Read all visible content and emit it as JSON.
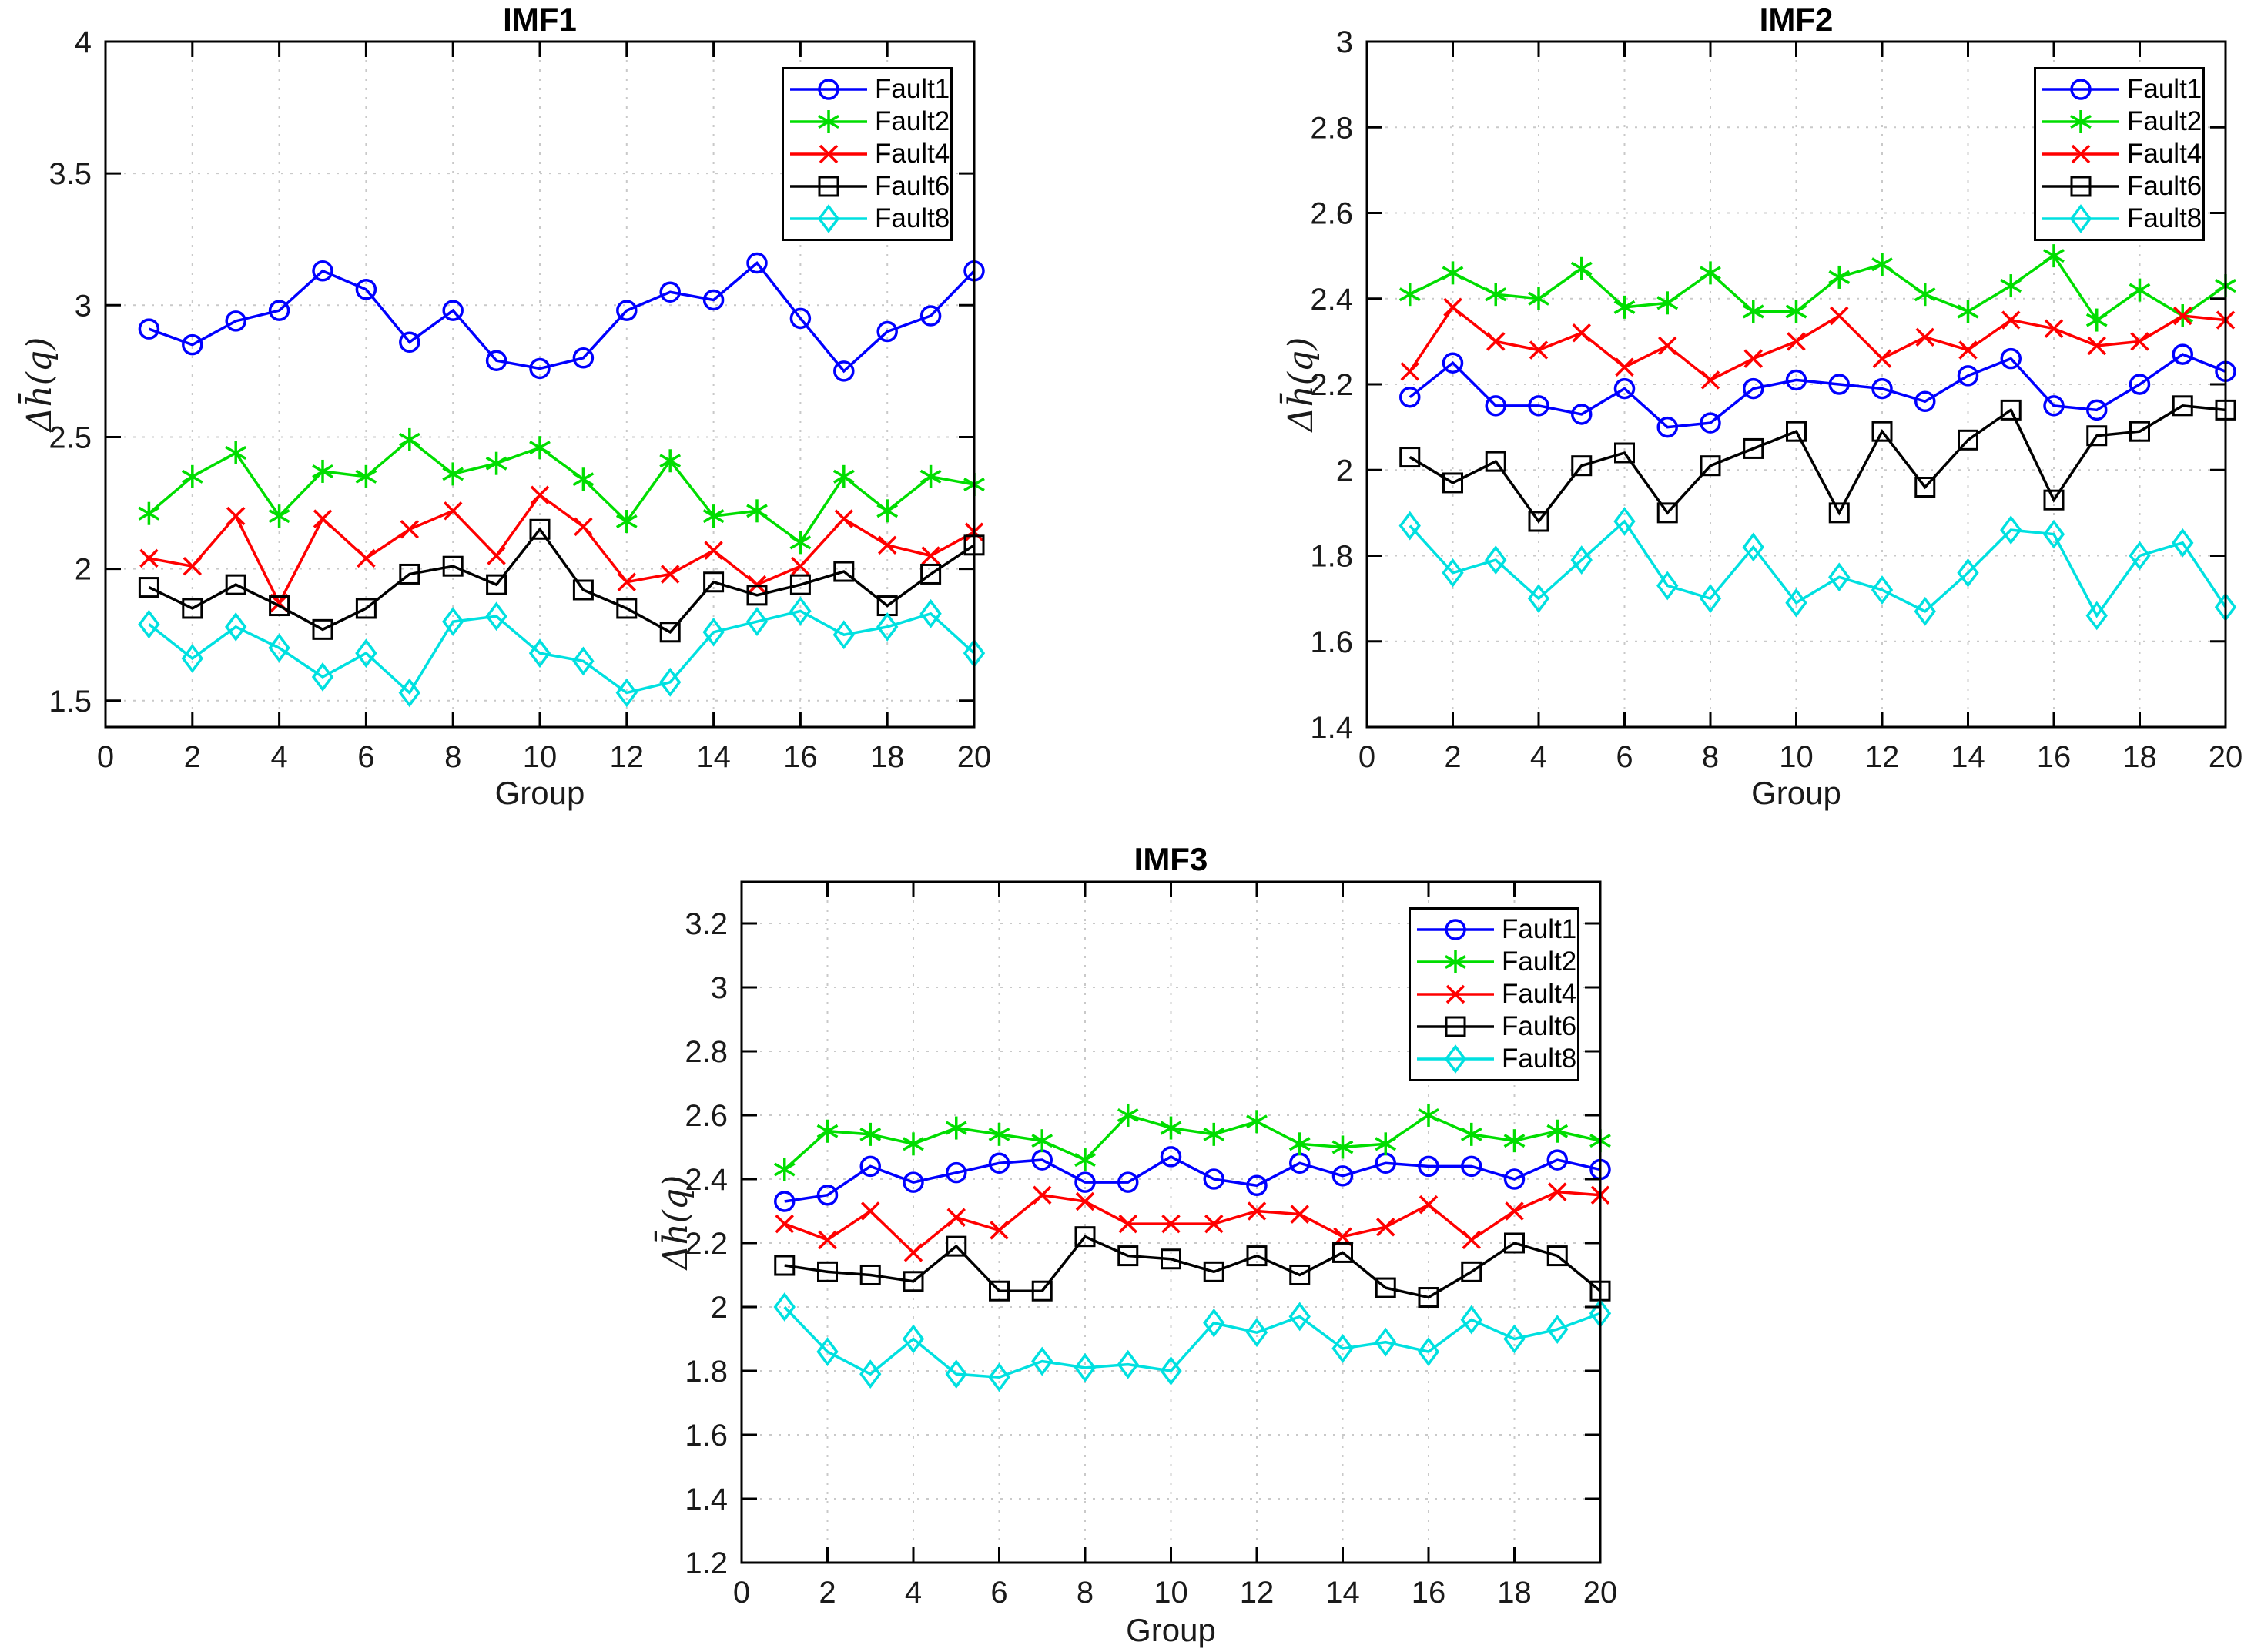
{
  "page": {
    "background": "#ffffff",
    "accent_colors": {
      "fault1": "#0000ff",
      "fault2": "#00dd00",
      "fault4": "#ff0000",
      "fault6": "#000000",
      "fault8": "#00e0e0",
      "grid": "#c9c9c9",
      "axes": "#000000"
    }
  },
  "chart_data": [
    {
      "type": "line",
      "title": "IMF1",
      "xlabel": "Group",
      "ylabel": "Δh̄(q)",
      "grid": true,
      "legend_position": "top-right-inside",
      "legend_entries": [
        "Fault1",
        "Fault2",
        "Fault4",
        "Fault6",
        "Fault8"
      ],
      "xlim": [
        0,
        20
      ],
      "ylim": [
        1.4,
        4.0
      ],
      "xticks": [
        0,
        2,
        4,
        6,
        8,
        10,
        12,
        14,
        16,
        18,
        20
      ],
      "xtick_labels": [
        "0",
        "2",
        "4",
        "6",
        "8",
        "10",
        "12",
        "14",
        "16",
        "18",
        "20"
      ],
      "yticks": [
        1.5,
        2,
        2.5,
        3,
        3.5,
        4
      ],
      "ytick_labels": [
        "1.5",
        "2",
        "2.5",
        "3",
        "3.5",
        "4"
      ],
      "x": [
        1,
        2,
        3,
        4,
        5,
        6,
        7,
        8,
        9,
        10,
        11,
        12,
        13,
        14,
        15,
        16,
        17,
        18,
        19,
        20
      ],
      "series": [
        {
          "name": "Fault1",
          "color": "#0000ff",
          "marker": "circle",
          "values": [
            2.91,
            2.85,
            2.94,
            2.98,
            3.13,
            3.06,
            2.86,
            2.98,
            2.79,
            2.76,
            2.8,
            2.98,
            3.05,
            3.02,
            3.16,
            2.95,
            2.75,
            2.9,
            2.96,
            3.13
          ]
        },
        {
          "name": "Fault2",
          "color": "#00dd00",
          "marker": "asterisk",
          "values": [
            2.21,
            2.35,
            2.44,
            2.2,
            2.37,
            2.35,
            2.49,
            2.36,
            2.4,
            2.46,
            2.34,
            2.18,
            2.41,
            2.2,
            2.22,
            2.1,
            2.35,
            2.22,
            2.35,
            2.32
          ]
        },
        {
          "name": "Fault4",
          "color": "#ff0000",
          "marker": "x",
          "values": [
            2.04,
            2.01,
            2.2,
            1.87,
            2.19,
            2.04,
            2.15,
            2.22,
            2.05,
            2.28,
            2.16,
            1.95,
            1.98,
            2.07,
            1.94,
            2.01,
            2.19,
            2.09,
            2.05,
            2.14
          ]
        },
        {
          "name": "Fault6",
          "color": "#000000",
          "marker": "square",
          "values": [
            1.93,
            1.85,
            1.94,
            1.86,
            1.77,
            1.85,
            1.98,
            2.01,
            1.94,
            2.15,
            1.92,
            1.85,
            1.76,
            1.95,
            1.9,
            1.94,
            1.99,
            1.86,
            1.98,
            2.09
          ]
        },
        {
          "name": "Fault8",
          "color": "#00e0e0",
          "marker": "diamond",
          "values": [
            1.79,
            1.66,
            1.78,
            1.7,
            1.59,
            1.68,
            1.53,
            1.8,
            1.82,
            1.68,
            1.65,
            1.53,
            1.57,
            1.76,
            1.8,
            1.84,
            1.75,
            1.78,
            1.83,
            1.68
          ]
        }
      ]
    },
    {
      "type": "line",
      "title": "IMF2",
      "xlabel": "Group",
      "ylabel": "Δh̄(q)",
      "grid": true,
      "legend_position": "top-right-inside",
      "legend_entries": [
        "Fault1",
        "Fault2",
        "Fault4",
        "Fault6",
        "Fault8"
      ],
      "xlim": [
        0,
        20
      ],
      "ylim": [
        1.4,
        3.0
      ],
      "xticks": [
        0,
        2,
        4,
        6,
        8,
        10,
        12,
        14,
        16,
        18,
        20
      ],
      "xtick_labels": [
        "0",
        "2",
        "4",
        "6",
        "8",
        "10",
        "12",
        "14",
        "16",
        "18",
        "20"
      ],
      "yticks": [
        1.4,
        1.6,
        1.8,
        2,
        2.2,
        2.4,
        2.6,
        2.8,
        3
      ],
      "ytick_labels": [
        "1.4",
        "1.6",
        "1.8",
        "2",
        "2.2",
        "2.4",
        "2.6",
        "2.8",
        "3"
      ],
      "x": [
        1,
        2,
        3,
        4,
        5,
        6,
        7,
        8,
        9,
        10,
        11,
        12,
        13,
        14,
        15,
        16,
        17,
        18,
        19,
        20
      ],
      "series": [
        {
          "name": "Fault1",
          "color": "#0000ff",
          "marker": "circle",
          "values": [
            2.17,
            2.25,
            2.15,
            2.15,
            2.13,
            2.19,
            2.1,
            2.11,
            2.19,
            2.21,
            2.2,
            2.19,
            2.16,
            2.22,
            2.26,
            2.15,
            2.14,
            2.2,
            2.27,
            2.23
          ]
        },
        {
          "name": "Fault2",
          "color": "#00dd00",
          "marker": "asterisk",
          "values": [
            2.41,
            2.46,
            2.41,
            2.4,
            2.47,
            2.38,
            2.39,
            2.46,
            2.37,
            2.37,
            2.45,
            2.48,
            2.41,
            2.37,
            2.43,
            2.5,
            2.35,
            2.42,
            2.36,
            2.43
          ]
        },
        {
          "name": "Fault4",
          "color": "#ff0000",
          "marker": "x",
          "values": [
            2.23,
            2.38,
            2.3,
            2.28,
            2.32,
            2.24,
            2.29,
            2.21,
            2.26,
            2.3,
            2.36,
            2.26,
            2.31,
            2.28,
            2.35,
            2.33,
            2.29,
            2.3,
            2.36,
            2.35
          ]
        },
        {
          "name": "Fault6",
          "color": "#000000",
          "marker": "square",
          "values": [
            2.03,
            1.97,
            2.02,
            1.88,
            2.01,
            2.04,
            1.9,
            2.01,
            2.05,
            2.09,
            1.9,
            2.09,
            1.96,
            2.07,
            2.14,
            1.93,
            2.08,
            2.09,
            2.15,
            2.14
          ]
        },
        {
          "name": "Fault8",
          "color": "#00e0e0",
          "marker": "diamond",
          "values": [
            1.87,
            1.76,
            1.79,
            1.7,
            1.79,
            1.88,
            1.73,
            1.7,
            1.82,
            1.69,
            1.75,
            1.72,
            1.67,
            1.76,
            1.86,
            1.85,
            1.66,
            1.8,
            1.83,
            1.68
          ]
        }
      ]
    },
    {
      "type": "line",
      "title": "IMF3",
      "xlabel": "Group",
      "ylabel": "Δh̄(q)",
      "grid": true,
      "legend_position": "top-right-inside",
      "legend_entries": [
        "Fault1",
        "Fault2",
        "Fault4",
        "Fault6",
        "Fault8"
      ],
      "xlim": [
        0,
        20
      ],
      "ylim": [
        1.2,
        3.33
      ],
      "xticks": [
        0,
        2,
        4,
        6,
        8,
        10,
        12,
        14,
        16,
        18,
        20
      ],
      "xtick_labels": [
        "0",
        "2",
        "4",
        "6",
        "8",
        "10",
        "12",
        "14",
        "16",
        "18",
        "20"
      ],
      "yticks": [
        1.2,
        1.4,
        1.6,
        1.8,
        2,
        2.2,
        2.4,
        2.6,
        2.8,
        3,
        3.2
      ],
      "ytick_labels": [
        "1.2",
        "1.4",
        "1.6",
        "1.8",
        "2",
        "2.2",
        "2.4",
        "2.6",
        "2.8",
        "3",
        "3.2"
      ],
      "x": [
        1,
        2,
        3,
        4,
        5,
        6,
        7,
        8,
        9,
        10,
        11,
        12,
        13,
        14,
        15,
        16,
        17,
        18,
        19,
        20
      ],
      "series": [
        {
          "name": "Fault1",
          "color": "#0000ff",
          "marker": "circle",
          "values": [
            2.33,
            2.35,
            2.44,
            2.39,
            2.42,
            2.45,
            2.46,
            2.39,
            2.39,
            2.47,
            2.4,
            2.38,
            2.45,
            2.41,
            2.45,
            2.44,
            2.44,
            2.4,
            2.46,
            2.43
          ]
        },
        {
          "name": "Fault2",
          "color": "#00dd00",
          "marker": "asterisk",
          "values": [
            2.43,
            2.55,
            2.54,
            2.51,
            2.56,
            2.54,
            2.52,
            2.46,
            2.6,
            2.56,
            2.54,
            2.58,
            2.51,
            2.5,
            2.51,
            2.6,
            2.54,
            2.52,
            2.55,
            2.52
          ]
        },
        {
          "name": "Fault4",
          "color": "#ff0000",
          "marker": "x",
          "values": [
            2.26,
            2.21,
            2.3,
            2.17,
            2.28,
            2.24,
            2.35,
            2.33,
            2.26,
            2.26,
            2.26,
            2.3,
            2.29,
            2.22,
            2.25,
            2.32,
            2.21,
            2.3,
            2.36,
            2.35
          ]
        },
        {
          "name": "Fault6",
          "color": "#000000",
          "marker": "square",
          "values": [
            2.13,
            2.11,
            2.1,
            2.08,
            2.19,
            2.05,
            2.05,
            2.22,
            2.16,
            2.15,
            2.11,
            2.16,
            2.1,
            2.17,
            2.06,
            2.03,
            2.11,
            2.2,
            2.16,
            2.05
          ]
        },
        {
          "name": "Fault8",
          "color": "#00e0e0",
          "marker": "diamond",
          "values": [
            2.0,
            1.86,
            1.79,
            1.9,
            1.79,
            1.78,
            1.83,
            1.81,
            1.82,
            1.8,
            1.95,
            1.92,
            1.97,
            1.87,
            1.89,
            1.86,
            1.96,
            1.9,
            1.93,
            1.98
          ]
        }
      ]
    }
  ]
}
